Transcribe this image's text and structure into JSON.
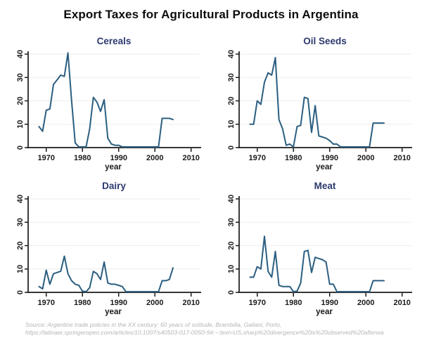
{
  "page": {
    "title": "Export Taxes for Agricultural Products in Argentina"
  },
  "footer": {
    "line1": "Source: Argentine trade policies in the XX century: 60 years of solitude, Brambilla, Galiani, Porto,",
    "line2": "https://latinaer.springeropen.com/articles/10.1007/s40503-017-0050-9#:~:text=US,sharp%20divergence%20is%20observed%20afterwa"
  },
  "colors": {
    "line": "#2b5e80",
    "chart_title": "#2c3a6e",
    "axis": "#1a1a1a",
    "grid": "#ededeb",
    "tick_label": "#1a1a1a",
    "footer_text": "#b5b5b5",
    "main_title": "#0d0d0d"
  },
  "chart_data": {
    "type": "line",
    "layout": "2x2 small multiples, shared axes style",
    "title": "Export Taxes for Agricultural Products in Argentina",
    "xlabel": "year",
    "ylabel": "",
    "xlim": [
      1965,
      2012
    ],
    "ylim": [
      0,
      40
    ],
    "x_ticks": [
      1970,
      1980,
      1990,
      2000,
      2010
    ],
    "y_ticks": [
      0,
      10,
      20,
      30,
      40
    ],
    "grid": true,
    "x": [
      1968,
      1969,
      1970,
      1971,
      1972,
      1973,
      1974,
      1975,
      1976,
      1977,
      1978,
      1979,
      1980,
      1981,
      1982,
      1983,
      1984,
      1985,
      1986,
      1987,
      1988,
      1989,
      1990,
      1991,
      1992,
      1993,
      1994,
      1995,
      1996,
      1997,
      1998,
      1999,
      2000,
      2001,
      2002,
      2003,
      2004,
      2005
    ],
    "charts": [
      {
        "title": "Cereals",
        "values": [
          9,
          7,
          16,
          16.5,
          27,
          29,
          31,
          30.5,
          40.5,
          20,
          2,
          0.3,
          0.3,
          0.3,
          8,
          21.5,
          19.5,
          15.5,
          20.5,
          4,
          1.5,
          1,
          1,
          0.3,
          0.3,
          0.3,
          0.3,
          0.3,
          0.3,
          0.3,
          0.3,
          0.3,
          0.3,
          0.3,
          12.5,
          12.5,
          12.5,
          12
        ]
      },
      {
        "title": "Oil Seeds",
        "values": [
          10,
          10,
          20,
          18.5,
          28,
          32,
          31,
          38.5,
          12,
          8,
          1,
          1.5,
          0.3,
          9,
          9.5,
          21.5,
          21,
          6.5,
          18,
          5,
          4.5,
          4,
          3,
          1.5,
          1.5,
          0.3,
          0.3,
          0.3,
          0.3,
          0.3,
          0.3,
          0.3,
          0.3,
          0.3,
          10.5,
          10.5,
          10.5,
          10.5
        ]
      },
      {
        "title": "Dairy",
        "values": [
          2.5,
          1.5,
          9.5,
          3.5,
          8,
          8.5,
          9,
          15.5,
          8,
          5,
          3.5,
          3,
          0.5,
          0.3,
          2,
          9,
          8,
          5.5,
          13,
          4,
          3.5,
          3.5,
          3,
          2.5,
          0.3,
          0.3,
          0.3,
          0.3,
          0.3,
          0.3,
          0.3,
          0.3,
          0.3,
          0.3,
          5,
          5,
          5.5,
          10.5
        ]
      },
      {
        "title": "Meat",
        "values": [
          6.5,
          6.5,
          11,
          10,
          24,
          9,
          6.5,
          17.5,
          3,
          2.5,
          2.5,
          2.5,
          0.3,
          0.5,
          4,
          17.5,
          18,
          8.5,
          15,
          14.5,
          14,
          13,
          3.5,
          3.5,
          0.3,
          0.3,
          0.3,
          0.3,
          0.3,
          0.3,
          0.3,
          0.3,
          0.3,
          0.3,
          5,
          5,
          5,
          5
        ]
      }
    ]
  }
}
